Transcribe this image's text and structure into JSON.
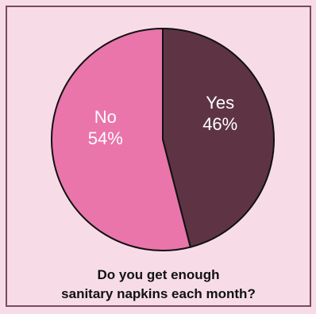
{
  "chart_data": {
    "type": "pie",
    "title": "Do you get enough sanitary napkins each month?",
    "title_lines": [
      "Do you get enough",
      "sanitary napkins each month?"
    ],
    "slices": [
      {
        "label": "Yes",
        "value": 46,
        "value_label": "46%",
        "color": "#5e3445"
      },
      {
        "label": "No",
        "value": 54,
        "value_label": "54%",
        "color": "#e975ab"
      }
    ],
    "start": "12 o'clock",
    "direction": "clockwise",
    "legend": "none",
    "slice_border_color": "#111111",
    "label_color": "#ffffff"
  },
  "colors": {
    "background": "#f7dce8",
    "frame_border": "#7a4a5c"
  }
}
